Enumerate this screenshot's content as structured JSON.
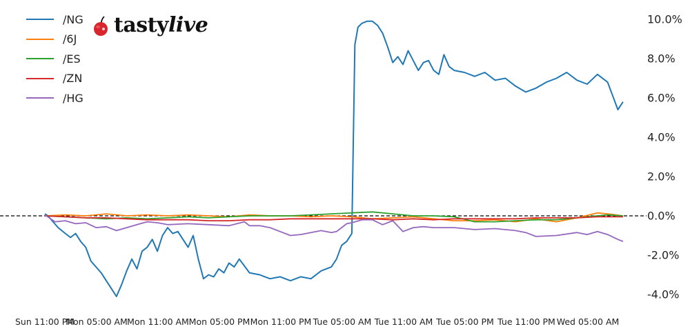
{
  "brand": {
    "logo_text_bold": "tasty",
    "logo_text_italic": "live",
    "logo_icon": "cherry-icon"
  },
  "colors": {
    "/NG": "#1f77b4",
    "/6J": "#ff7f0e",
    "/ES": "#2ca02c",
    "/ZN": "#d62728",
    "/HG": "#9467bd",
    "zero_line": "#000000"
  },
  "legend": [
    {
      "label": "/NG",
      "color": "#1f77b4"
    },
    {
      "label": "/6J",
      "color": "#ff7f0e"
    },
    {
      "label": "/ES",
      "color": "#2ca02c"
    },
    {
      "label": "/ZN",
      "color": "#d62728"
    },
    {
      "label": "/HG",
      "color": "#9467bd"
    }
  ],
  "y_ticks": [
    "10.0%",
    "8.0%",
    "6.0%",
    "4.0%",
    "2.0%",
    "0.0%",
    "-2.0%",
    "-4.0%"
  ],
  "x_ticks": [
    "Sun 11:00 PM",
    "Mon 05:00 AM",
    "Mon 11:00 AM",
    "Mon 05:00 PM",
    "Mon 11:00 PM",
    "Tue 05:00 AM",
    "Tue 11:00 AM",
    "Tue 05:00 PM",
    "Tue 11:00 PM",
    "Wed 05:00 AM"
  ],
  "chart_data": {
    "type": "line",
    "title": "",
    "xlabel": "",
    "ylabel": "",
    "ylim": [
      -4.5,
      10.3
    ],
    "y_axis_position": "right",
    "y_format": "percent",
    "grid": false,
    "legend_position": "upper left",
    "zero_reference_line": {
      "y": 0,
      "style": "dashed",
      "color": "#000000"
    },
    "categories": [
      "Sun 11:00 PM",
      "Mon 05:00 AM",
      "Mon 11:00 AM",
      "Mon 05:00 PM",
      "Mon 11:00 PM",
      "Tue 05:00 AM",
      "Tue 11:00 AM",
      "Tue 05:00 PM",
      "Tue 11:00 PM",
      "Wed 05:00 AM"
    ],
    "x_hours_from_start": [
      0,
      6,
      12,
      18,
      24,
      30,
      36,
      42,
      48,
      54
    ],
    "series": [
      {
        "name": "/NG",
        "color": "#1f77b4",
        "x": [
          0,
          0.3,
          0.8,
          1.3,
          2.0,
          2.5,
          3.0,
          3.5,
          4.0,
          4.5,
          5.0,
          5.5,
          6.0,
          6.5,
          7.0,
          7.5,
          8.0,
          8.5,
          9.0,
          9.5,
          10.0,
          10.5,
          11.0,
          11.5,
          12.0,
          12.5,
          13.0,
          13.5,
          14.0,
          14.5,
          15.0,
          15.5,
          16.0,
          16.5,
          17.0,
          17.5,
          18.0,
          18.5,
          19.0,
          20.0,
          21.0,
          22.0,
          23.0,
          24.0,
          25.0,
          26.0,
          27.0,
          28.0,
          28.5,
          29.0,
          29.5,
          30.0,
          30.3,
          30.6,
          31.0,
          31.5,
          32.0,
          32.5,
          33.0,
          33.5,
          34.0,
          34.5,
          35.0,
          35.5,
          36.0,
          36.5,
          37.0,
          37.5,
          38.0,
          38.5,
          39.0,
          39.5,
          40.0,
          41.0,
          42.0,
          43.0,
          44.0,
          45.0,
          46.0,
          47.0,
          48.0,
          49.0,
          50.0,
          51.0,
          52.0,
          53.0,
          54.0,
          55.0,
          55.5,
          56.0,
          56.5
        ],
        "values": [
          0.1,
          0.0,
          -0.3,
          -0.6,
          -0.9,
          -1.1,
          -0.9,
          -1.3,
          -1.6,
          -2.3,
          -2.6,
          -2.9,
          -3.3,
          -3.7,
          -4.1,
          -3.5,
          -2.8,
          -2.2,
          -2.7,
          -1.8,
          -1.6,
          -1.2,
          -1.8,
          -1.0,
          -0.6,
          -0.9,
          -0.8,
          -1.2,
          -1.6,
          -1.0,
          -2.2,
          -3.2,
          -3.0,
          -3.1,
          -2.7,
          -2.9,
          -2.4,
          -2.6,
          -2.2,
          -2.9,
          -3.0,
          -3.2,
          -3.1,
          -3.3,
          -3.1,
          -3.2,
          -2.8,
          -2.6,
          -2.2,
          -1.5,
          -1.3,
          -0.9,
          8.7,
          9.6,
          9.8,
          9.9,
          9.9,
          9.7,
          9.3,
          8.6,
          7.8,
          8.1,
          7.7,
          8.4,
          7.9,
          7.4,
          7.8,
          7.9,
          7.4,
          7.2,
          8.2,
          7.6,
          7.4,
          7.3,
          7.1,
          7.3,
          6.9,
          7.0,
          6.6,
          6.3,
          6.5,
          6.8,
          7.0,
          7.3,
          6.9,
          6.7,
          7.2,
          6.8,
          6.1,
          5.4,
          5.8
        ]
      },
      {
        "name": "/6J",
        "color": "#ff7f0e",
        "x": [
          0,
          2,
          4,
          6,
          8,
          10,
          12,
          14,
          16,
          18,
          20,
          22,
          24,
          26,
          28,
          30,
          32,
          34,
          36,
          38,
          40,
          42,
          44,
          46,
          48,
          50,
          52,
          54,
          55,
          56.5
        ],
        "values": [
          0.0,
          0.05,
          0.0,
          0.1,
          0.0,
          0.05,
          0.0,
          0.05,
          0.0,
          -0.05,
          0.05,
          0.0,
          0.0,
          -0.05,
          0.0,
          -0.05,
          -0.15,
          -0.1,
          -0.05,
          -0.15,
          -0.25,
          -0.25,
          -0.2,
          -0.3,
          -0.15,
          -0.3,
          -0.1,
          0.15,
          0.1,
          0.0
        ]
      },
      {
        "name": "/ES",
        "color": "#2ca02c",
        "x": [
          0,
          2,
          4,
          6,
          8,
          10,
          12,
          14,
          16,
          18,
          20,
          22,
          24,
          26,
          28,
          30,
          32,
          34,
          36,
          38,
          40,
          42,
          44,
          46,
          48,
          50,
          52,
          54,
          55,
          56.5
        ],
        "values": [
          0.0,
          -0.05,
          -0.1,
          -0.15,
          -0.1,
          -0.15,
          -0.1,
          -0.05,
          -0.1,
          -0.05,
          0.0,
          0.0,
          0.0,
          0.05,
          0.1,
          0.15,
          0.2,
          0.1,
          0.0,
          0.0,
          -0.05,
          -0.3,
          -0.3,
          -0.25,
          -0.2,
          -0.2,
          -0.1,
          0.0,
          0.05,
          0.0
        ]
      },
      {
        "name": "/ZN",
        "color": "#d62728",
        "x": [
          0,
          2,
          4,
          6,
          8,
          10,
          12,
          14,
          16,
          18,
          20,
          22,
          24,
          26,
          28,
          30,
          32,
          34,
          36,
          38,
          40,
          42,
          44,
          46,
          48,
          50,
          52,
          54,
          55,
          56.5
        ],
        "values": [
          0.0,
          -0.05,
          -0.1,
          -0.1,
          -0.15,
          -0.2,
          -0.2,
          -0.2,
          -0.25,
          -0.25,
          -0.2,
          -0.2,
          -0.15,
          -0.15,
          -0.15,
          -0.15,
          -0.15,
          -0.2,
          -0.15,
          -0.2,
          -0.15,
          -0.15,
          -0.15,
          -0.15,
          -0.1,
          -0.1,
          -0.1,
          -0.05,
          -0.05,
          -0.05
        ]
      },
      {
        "name": "/HG",
        "color": "#9467bd",
        "x": [
          0,
          1,
          2,
          3,
          4,
          5,
          6,
          7,
          8,
          9,
          10,
          11,
          12,
          14,
          16,
          18,
          19.5,
          20,
          21,
          22,
          23,
          24,
          25,
          26,
          27,
          28,
          28.5,
          29,
          29.5,
          30,
          31,
          32,
          33,
          34,
          35,
          36,
          37,
          38,
          40,
          42,
          44,
          46,
          47,
          48,
          50,
          52,
          53,
          54,
          55,
          56,
          56.5
        ],
        "values": [
          0.05,
          -0.3,
          -0.25,
          -0.4,
          -0.35,
          -0.6,
          -0.55,
          -0.75,
          -0.6,
          -0.45,
          -0.3,
          -0.35,
          -0.45,
          -0.4,
          -0.45,
          -0.5,
          -0.3,
          -0.5,
          -0.5,
          -0.6,
          -0.8,
          -1.0,
          -0.95,
          -0.85,
          -0.75,
          -0.85,
          -0.8,
          -0.6,
          -0.4,
          -0.35,
          -0.2,
          -0.2,
          -0.45,
          -0.25,
          -0.8,
          -0.6,
          -0.55,
          -0.6,
          -0.6,
          -0.7,
          -0.65,
          -0.75,
          -0.85,
          -1.05,
          -1.0,
          -0.85,
          -0.95,
          -0.8,
          -0.95,
          -1.2,
          -1.3
        ]
      }
    ]
  }
}
